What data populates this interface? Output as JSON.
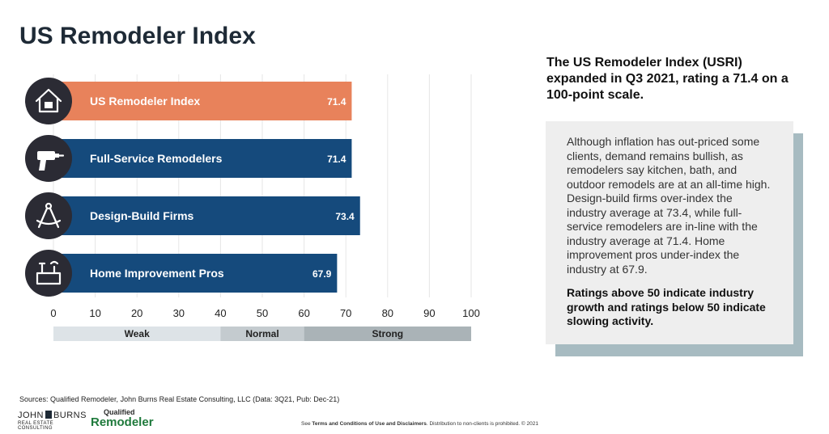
{
  "page": {
    "headline": "The US Remodeler Index (USRI) expanded in Q3 2021, rating a 71.4 on a 100-point scale.",
    "panel_body": "Although inflation has out-priced some clients, demand remains bullish, as remodelers say kitchen, bath, and outdoor remodels are at an all-time high. Design-build firms over-index the industry average at 73.4, while full-service remodelers are in-line with the industry average at 71.4. Home improvement pros under-index the industry at 67.9.",
    "panel_note": "Ratings above 50 indicate industry growth and ratings below 50 indicate slowing activity.",
    "sources": "Sources: Qualified Remodeler, John Burns Real Estate Consulting, LLC (Data: 3Q21, Pub: Dec-21)",
    "logo_john_burns": "JOHN",
    "logo_john_burns_2": "BURNS",
    "logo_john_burns_sub": "REAL ESTATE CONSULTING",
    "logo_qr_top": "Qualified",
    "logo_qr_main": "Remodeler",
    "footer_pre": "See",
    "footer_bold": "Terms and Conditions of Use and Disclaimers",
    "footer_post": ". Distribution to non-clients is prohibited. © 2021"
  },
  "chart_data": {
    "type": "bar",
    "orientation": "horizontal",
    "title": "US Remodeler Index",
    "categories": [
      "US Remodeler Index",
      "Full-Service Remodelers",
      "Design-Build Firms",
      "Home Improvement Pros"
    ],
    "values": [
      71.4,
      71.4,
      73.4,
      67.9
    ],
    "value_labels": [
      "71.4",
      "71.4",
      "73.4",
      "67.9"
    ],
    "icons": [
      "house-icon",
      "drill-icon",
      "compass-icon",
      "toolbox-icon"
    ],
    "bar_colors": [
      "#e8825b",
      "#154a7c",
      "#154a7c",
      "#154a7c"
    ],
    "xlim": [
      0,
      100
    ],
    "xticks": [
      0,
      10,
      20,
      30,
      40,
      50,
      60,
      70,
      80,
      90,
      100
    ],
    "xtick_labels": [
      "0",
      "10",
      "20",
      "30",
      "40",
      "50",
      "60",
      "70",
      "80",
      "90",
      "100"
    ],
    "grid": true,
    "zones": [
      {
        "label": "Weak",
        "start": 0,
        "end": 40,
        "color": "#dde3e7"
      },
      {
        "label": "Normal",
        "start": 40,
        "end": 60,
        "color": "#c4cbcf"
      },
      {
        "label": "Strong",
        "start": 60,
        "end": 100,
        "color": "#aab3b7"
      }
    ],
    "icon_bg_color": "#2b2b34"
  }
}
